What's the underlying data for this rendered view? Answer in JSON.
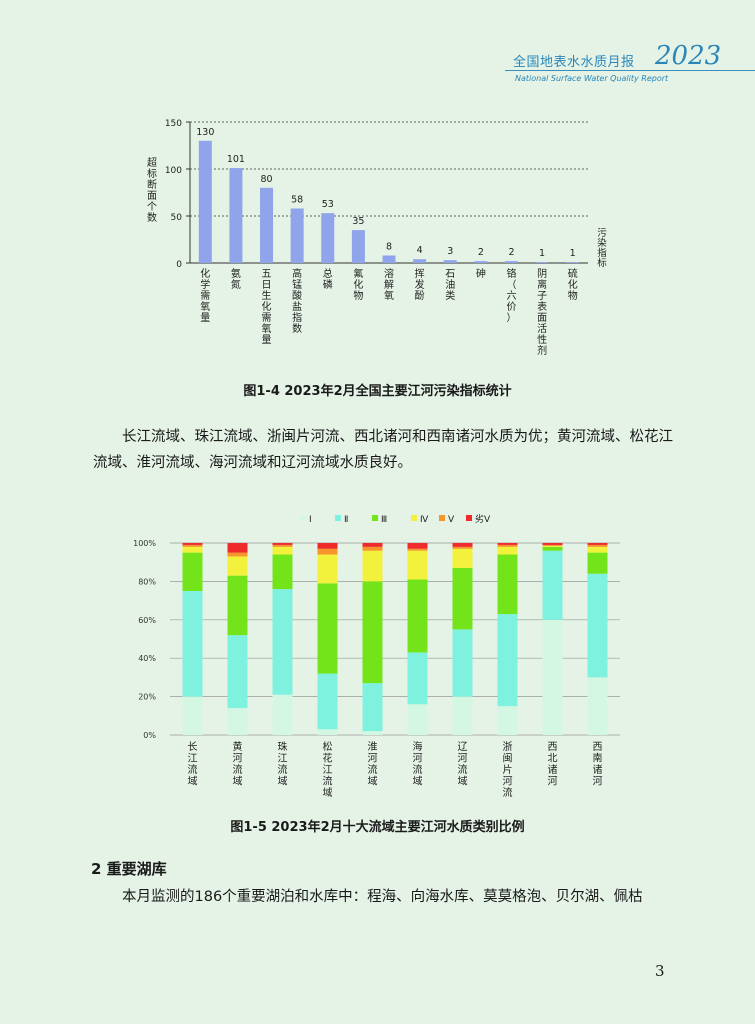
{
  "header": {
    "title": "全国地表水水质月报",
    "year": "2023",
    "subtitle_en": "National Surface Water Quality Report"
  },
  "chart1": {
    "caption": "图1-4  2023年2月全国主要江河污染指标统计",
    "ylabel": "超标断面个数",
    "xlabel": "污染指标",
    "y_ticks": [
      "0",
      "50",
      "100",
      "150"
    ],
    "bar_color": "#8fa4ea",
    "chart_data": {
      "type": "bar",
      "ylabel": "超标断面个数",
      "xlabel": "污染指标",
      "ylim": [
        0,
        150
      ],
      "categories": [
        "化学需氧量",
        "氨氮",
        "五日生化需氧量",
        "高锰酸盐指数",
        "总磷",
        "氟化物",
        "溶解氧",
        "挥发酚",
        "石油类",
        "砷",
        "铬（六价）",
        "阴离子表面活性剂",
        "硫化物"
      ],
      "values": [
        130,
        101,
        80,
        58,
        53,
        35,
        8,
        4,
        3,
        2,
        2,
        1,
        1
      ]
    }
  },
  "para1": "长江流域、珠江流域、浙闽片河流、西北诸河和西南诸河水质为优；黄河流域、松花江流域、淮河流域、海河流域和辽河流域水质良好。",
  "chart2": {
    "caption": "图1-5  2023年2月十大流域主要江河水质类别比例",
    "y_ticks": [
      "0%",
      "20%",
      "40%",
      "60%",
      "80%",
      "100%"
    ],
    "chart_data": {
      "type": "bar",
      "stacked": true,
      "ylim": [
        0,
        100
      ],
      "legend_position": "top",
      "categories": [
        "长江流域",
        "黄河流域",
        "珠江流域",
        "松花江流域",
        "淮河流域",
        "海河流域",
        "辽河流域",
        "浙闽片河流",
        "西北诸河",
        "西南诸河"
      ],
      "series": [
        {
          "name": "Ⅰ",
          "color": "#d4f7e4",
          "values": [
            20,
            14,
            21,
            3,
            2,
            16,
            20,
            15,
            60,
            30
          ]
        },
        {
          "name": "Ⅱ",
          "color": "#7ef2de",
          "values": [
            55,
            38,
            55,
            29,
            25,
            27,
            35,
            48,
            36,
            54
          ]
        },
        {
          "name": "Ⅲ",
          "color": "#74e41a",
          "values": [
            20,
            31,
            18,
            47,
            53,
            38,
            32,
            31,
            2,
            11
          ]
        },
        {
          "name": "Ⅳ",
          "color": "#f2f23c",
          "values": [
            3,
            10,
            4,
            15,
            16,
            15,
            10,
            4,
            0.5,
            3
          ]
        },
        {
          "name": "Ⅴ",
          "color": "#f7942a",
          "values": [
            1,
            2,
            1,
            3,
            2,
            1,
            1,
            1,
            0.5,
            1
          ]
        },
        {
          "name": "劣Ⅴ",
          "color": "#ee2a2a",
          "values": [
            1,
            5,
            1,
            3,
            2,
            3,
            2,
            1,
            1,
            1
          ]
        }
      ]
    }
  },
  "section": {
    "title": "2 重要湖库",
    "text": "本月监测的186个重要湖泊和水库中：程海、向海水库、莫莫格泡、贝尔湖、佩枯"
  },
  "page_number": "3"
}
